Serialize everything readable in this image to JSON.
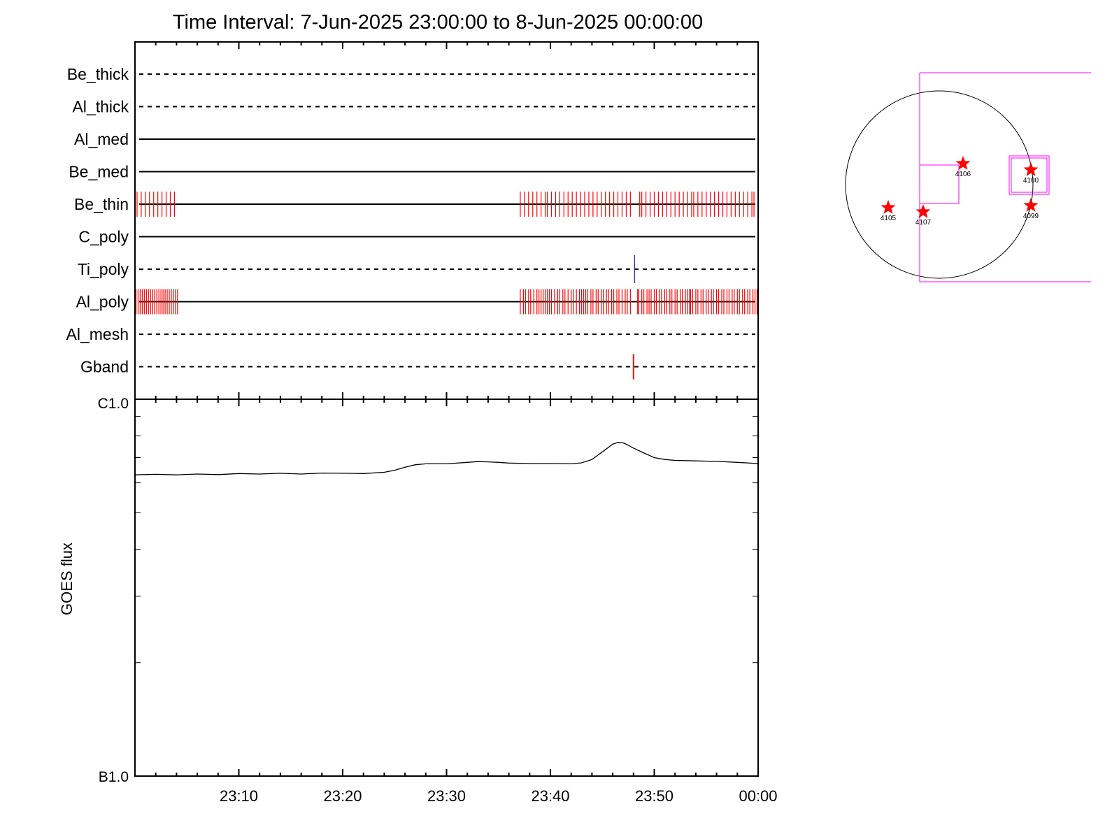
{
  "title": "Time Interval:  7-Jun-2025 23:00:00 to  8-Jun-2025 00:00:00",
  "colors": {
    "axis": "#000000",
    "event": "#ff0000",
    "ti_event": "#2020a0",
    "box": "#ff00ff",
    "goes": "#000000"
  },
  "chart_data": [
    {
      "type": "timeline",
      "x_unit": "minutes after 23:00",
      "xlim": [
        0,
        60
      ],
      "filters": [
        {
          "name": "Be_thick",
          "style": "dashed",
          "events": []
        },
        {
          "name": "Al_thick",
          "style": "dashed",
          "events": []
        },
        {
          "name": "Al_med",
          "style": "solid",
          "events": []
        },
        {
          "name": "Be_med",
          "style": "solid",
          "events": []
        },
        {
          "name": "Be_thin",
          "style": "solid",
          "color": "#ff0000",
          "events": [
            0.2,
            0.6,
            1.0,
            1.4,
            1.8,
            2.2,
            2.6,
            3.0,
            3.4,
            3.8,
            37.1,
            37.5,
            37.9,
            38.3,
            38.7,
            39.1,
            39.5,
            39.7,
            40.1,
            40.5,
            40.9,
            41.3,
            41.7,
            42.1,
            42.5,
            42.9,
            43.3,
            43.7,
            44.1,
            44.5,
            44.9,
            45.3,
            45.7,
            46.1,
            46.5,
            46.9,
            47.3,
            47.7,
            48.6,
            48.8,
            49.2,
            49.6,
            50.0,
            50.4,
            50.8,
            51.2,
            51.6,
            52.0,
            52.4,
            52.8,
            53.2,
            53.6,
            53.8,
            54.2,
            54.6,
            55.0,
            55.4,
            55.8,
            56.2,
            56.6,
            57.0,
            57.4,
            57.8,
            58.2,
            58.6,
            59.0,
            59.4,
            59.6
          ]
        },
        {
          "name": "C_poly",
          "style": "solid",
          "events": []
        },
        {
          "name": "Ti_poly",
          "style": "dashed",
          "color": "#2020a0",
          "events": [
            48.1
          ]
        },
        {
          "name": "Al_poly",
          "style": "solid",
          "color": "#ff0000",
          "events": [
            0.1,
            0.3,
            0.5,
            0.7,
            0.9,
            1.1,
            1.3,
            1.5,
            1.7,
            1.9,
            2.1,
            2.3,
            2.5,
            2.7,
            2.9,
            3.1,
            3.3,
            3.5,
            3.7,
            3.9,
            4.1,
            37.1,
            37.4,
            37.6,
            37.9,
            38.1,
            38.4,
            38.7,
            38.9,
            39.1,
            39.3,
            39.5,
            39.7,
            39.9,
            40.1,
            40.4,
            40.7,
            40.9,
            41.2,
            41.4,
            41.7,
            42.0,
            42.2,
            42.5,
            42.8,
            43.0,
            43.2,
            43.4,
            43.6,
            43.9,
            44.1,
            44.4,
            44.6,
            44.9,
            45.1,
            45.4,
            45.6,
            45.9,
            46.1,
            46.4,
            46.6,
            46.9,
            47.2,
            47.4,
            47.7,
            48.4,
            48.5,
            48.8,
            49.0,
            49.3,
            49.5,
            49.7,
            50.0,
            50.2,
            50.5,
            50.7,
            51.0,
            51.2,
            51.5,
            51.7,
            52.0,
            52.2,
            52.5,
            52.7,
            53.0,
            53.2,
            53.4,
            53.5,
            53.7,
            54.0,
            54.2,
            54.5,
            54.7,
            55.0,
            55.2,
            55.5,
            55.7,
            56.0,
            56.2,
            56.5,
            56.7,
            57.0,
            57.2,
            57.5,
            57.7,
            58.0,
            58.2,
            58.5,
            58.7,
            59.0,
            59.2,
            59.5,
            59.7,
            59.9
          ]
        },
        {
          "name": "Al_mesh",
          "style": "dashed",
          "events": []
        },
        {
          "name": "Gband",
          "style": "dashed",
          "color": "#ff0000",
          "events": [
            48.0
          ]
        }
      ]
    },
    {
      "type": "line",
      "ylabel": "GOES flux",
      "y_scale": "log",
      "ylim": [
        1e-06,
        1e-05
      ],
      "ytick_labels": [
        "C1.0",
        "B1.0"
      ],
      "x_unit": "minutes after 23:00",
      "xlim": [
        0,
        60
      ],
      "x_tick_labels": [
        "23:10",
        "23:20",
        "23:30",
        "23:40",
        "23:50",
        "00:00"
      ],
      "series": [
        {
          "x": [
            0,
            2,
            4,
            6,
            8,
            10,
            12,
            14,
            16,
            18,
            20,
            22,
            24,
            25,
            26,
            27,
            28,
            30,
            32,
            33,
            34,
            35,
            36,
            38,
            40,
            42,
            43,
            44,
            45,
            46,
            46.5,
            47,
            47.5,
            48,
            49,
            50,
            51,
            52,
            54,
            56,
            58,
            60
          ],
          "y": [
            6.3e-06,
            6.32e-06,
            6.3e-06,
            6.33e-06,
            6.31e-06,
            6.35e-06,
            6.33e-06,
            6.36e-06,
            6.33e-06,
            6.37e-06,
            6.36e-06,
            6.35e-06,
            6.4e-06,
            6.48e-06,
            6.6e-06,
            6.7e-06,
            6.74e-06,
            6.74e-06,
            6.8e-06,
            6.83e-06,
            6.82e-06,
            6.8e-06,
            6.77e-06,
            6.75e-06,
            6.75e-06,
            6.74e-06,
            6.78e-06,
            6.92e-06,
            7.25e-06,
            7.6e-06,
            7.68e-06,
            7.66e-06,
            7.55e-06,
            7.42e-06,
            7.2e-06,
            7e-06,
            6.92e-06,
            6.88e-06,
            6.86e-06,
            6.84e-06,
            6.8e-06,
            6.75e-06
          ]
        }
      ]
    }
  ],
  "sun_map": {
    "regions": [
      {
        "label": "4106"
      },
      {
        "label": "4100"
      },
      {
        "label": "4105"
      },
      {
        "label": "4107"
      },
      {
        "label": "4099"
      }
    ]
  }
}
